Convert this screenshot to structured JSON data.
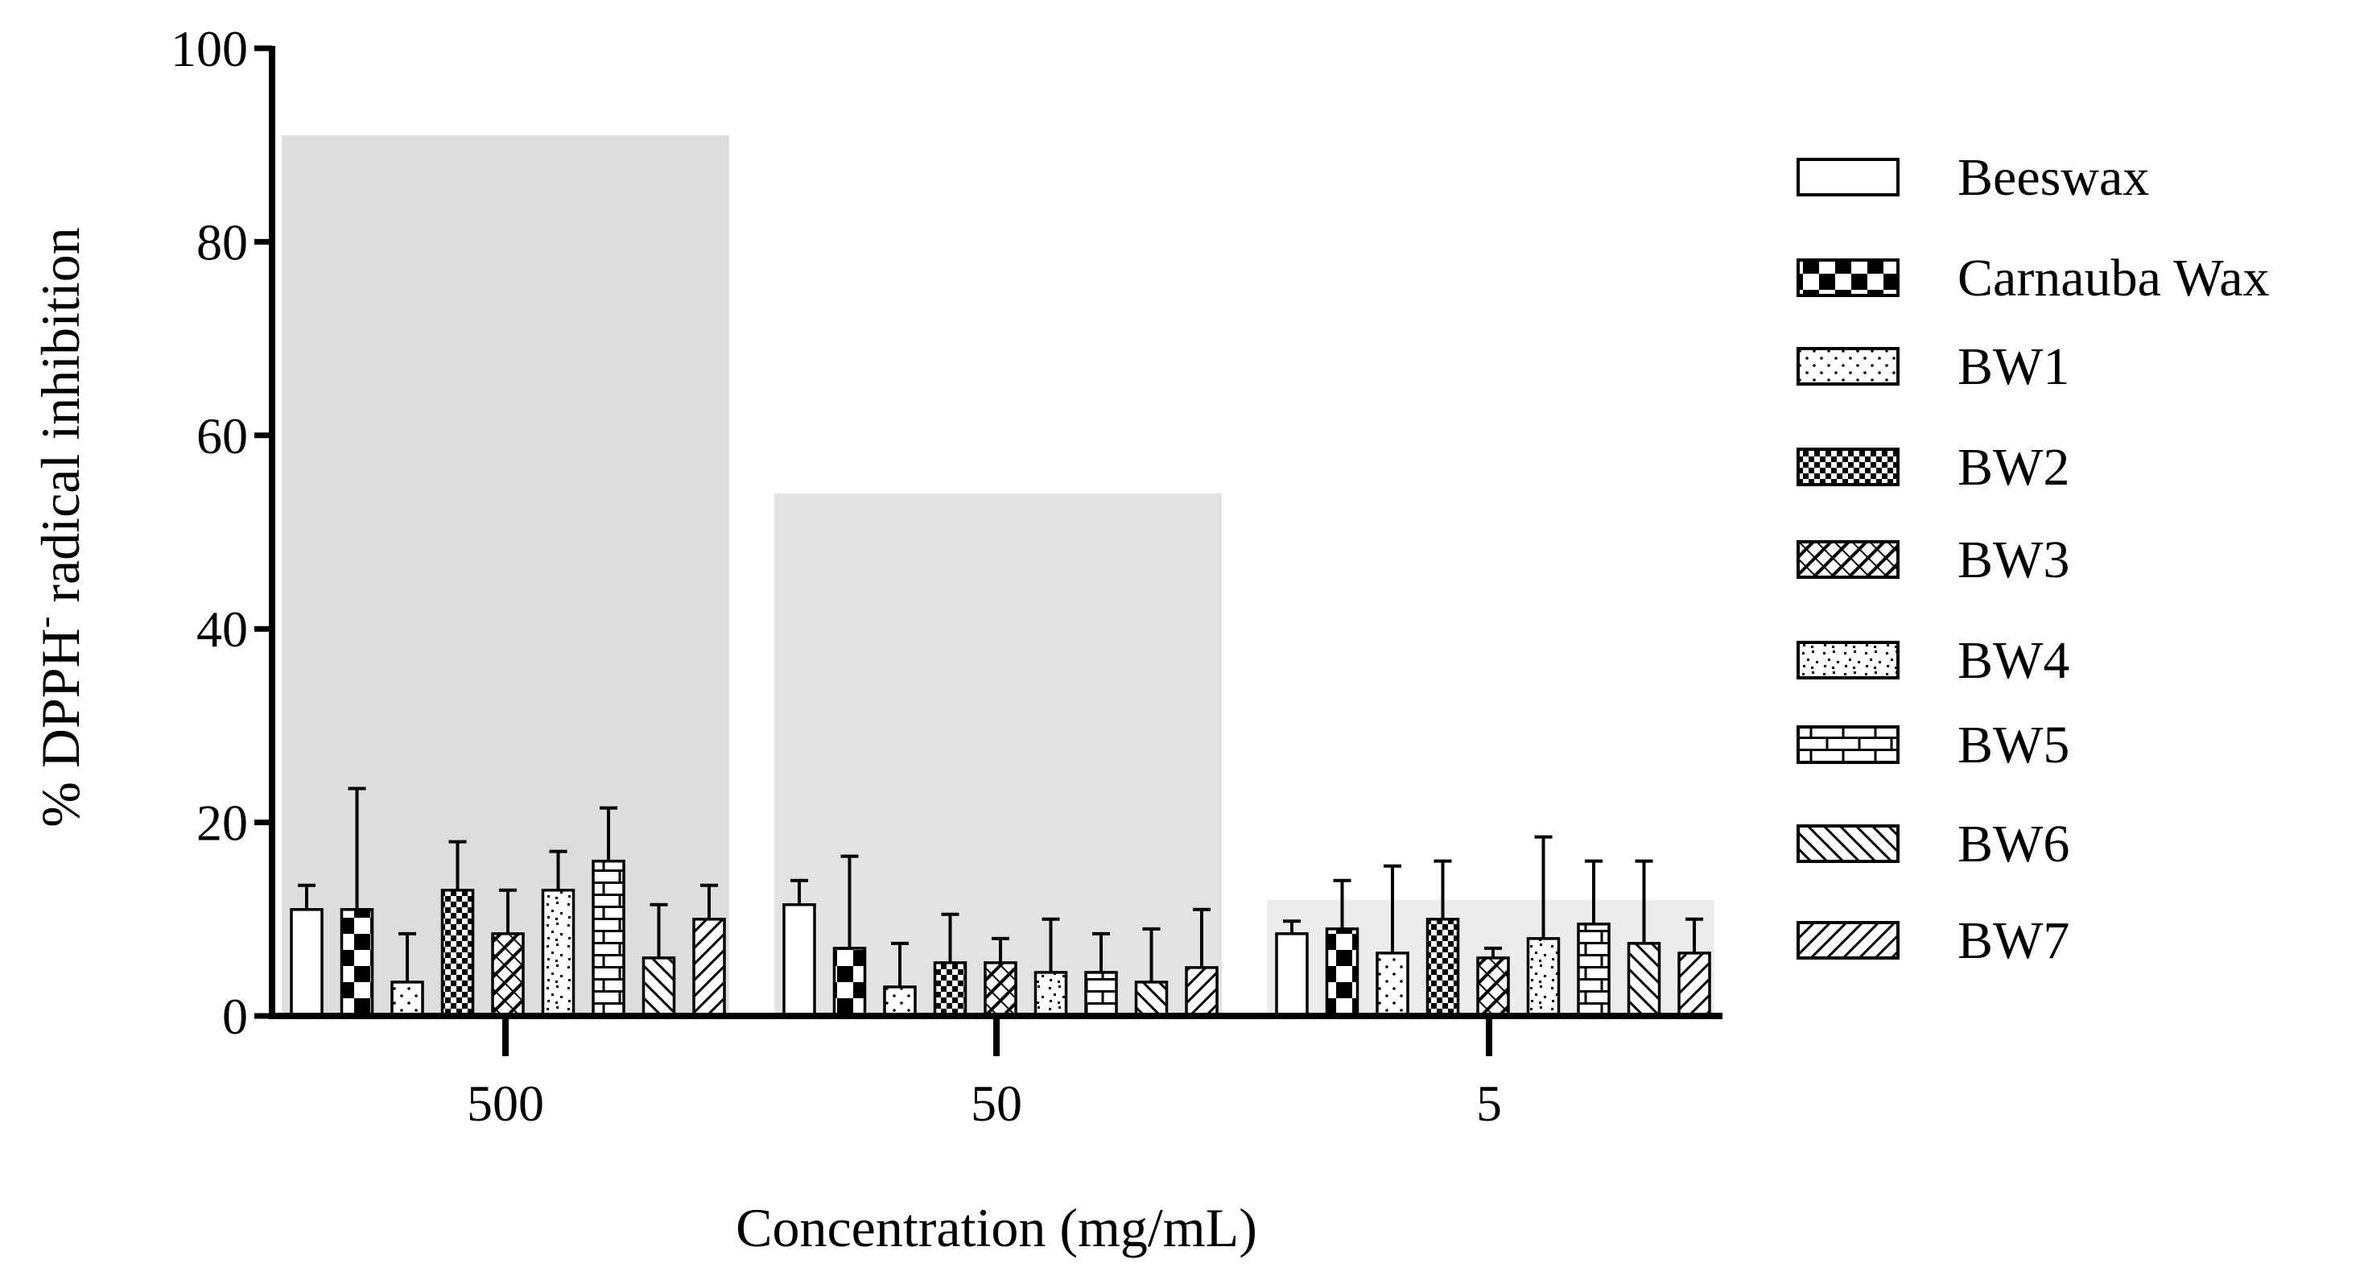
{
  "chart_data": {
    "type": "bar",
    "title": "",
    "xlabel": "Concentration (mg/mL)",
    "ylabel_main": "% DPPH",
    "ylabel_sup": "-",
    "ylabel_rest": " radical inhibition",
    "ylim": [
      0,
      100
    ],
    "yticks": [
      "0",
      "20",
      "40",
      "60",
      "80",
      "100"
    ],
    "categories": [
      "500",
      "50",
      "5"
    ],
    "reference_values": [
      91,
      54,
      12
    ],
    "reference_color": "#d9d9d9",
    "series": [
      {
        "name": "Beeswax",
        "pattern": "plain",
        "values": [
          11,
          11.5,
          8.5
        ],
        "errors": [
          2.5,
          2.5,
          1.3
        ]
      },
      {
        "name": "Carnauba Wax",
        "pattern": "checker",
        "values": [
          11,
          7,
          9
        ],
        "errors": [
          12.5,
          9.5,
          5
        ]
      },
      {
        "name": "BW1",
        "pattern": "dots",
        "values": [
          3.5,
          3,
          6.5
        ],
        "errors": [
          5,
          4.5,
          9
        ]
      },
      {
        "name": "BW2",
        "pattern": "finecheck",
        "values": [
          13,
          5.5,
          10
        ],
        "errors": [
          5,
          5,
          6
        ]
      },
      {
        "name": "BW3",
        "pattern": "crosshatch",
        "values": [
          8.5,
          5.5,
          6
        ],
        "errors": [
          4.5,
          2.5,
          1
        ]
      },
      {
        "name": "BW4",
        "pattern": "speckle",
        "values": [
          13,
          4.5,
          8
        ],
        "errors": [
          4,
          5.5,
          10.5
        ]
      },
      {
        "name": "BW5",
        "pattern": "brick",
        "values": [
          16,
          4.5,
          9.5
        ],
        "errors": [
          5.5,
          4,
          6.5
        ]
      },
      {
        "name": "BW6",
        "pattern": "diag-back",
        "values": [
          6,
          3.5,
          7.5
        ],
        "errors": [
          5.5,
          5.5,
          8.5
        ]
      },
      {
        "name": "BW7",
        "pattern": "diag-fwd",
        "values": [
          10,
          5,
          6.5
        ],
        "errors": [
          3.5,
          6,
          3.5
        ]
      }
    ]
  }
}
